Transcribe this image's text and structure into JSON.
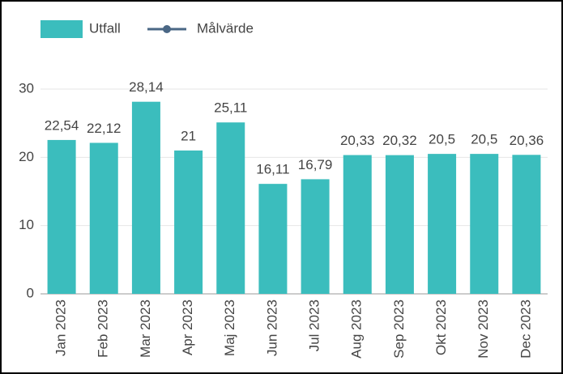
{
  "chart_data": {
    "type": "bar",
    "categories": [
      "Jan 2023",
      "Feb 2023",
      "Mar 2023",
      "Apr 2023",
      "Maj 2023",
      "Jun 2023",
      "Jul 2023",
      "Aug 2023",
      "Sep 2023",
      "Okt 2023",
      "Nov 2023",
      "Dec 2023"
    ],
    "series": [
      {
        "name": "Utfall",
        "color": "#3bbdbd",
        "values": [
          22.54,
          22.12,
          28.14,
          21,
          25.11,
          16.11,
          16.79,
          20.33,
          20.32,
          20.5,
          20.5,
          20.36
        ],
        "value_labels": [
          "22,54",
          "22,12",
          "28,14",
          "21",
          "25,11",
          "16,11",
          "16,79",
          "20,33",
          "20,32",
          "20,5",
          "20,5",
          "20,36"
        ]
      },
      {
        "name": "Målvärde",
        "type": "line",
        "color": "#4a6785",
        "values": [
          null,
          null,
          null,
          null,
          null,
          null,
          null,
          null,
          null,
          null,
          null,
          null
        ]
      }
    ],
    "ylim": [
      0,
      30
    ],
    "yticks": [
      0,
      10,
      20,
      30
    ],
    "grid": true,
    "legend": "top-left"
  }
}
